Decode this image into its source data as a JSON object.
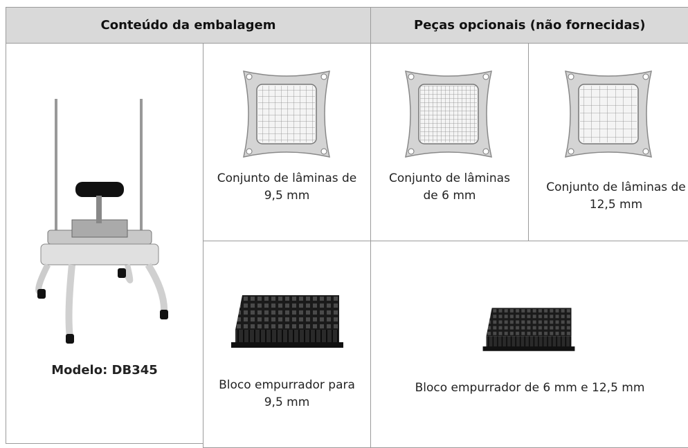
{
  "header": {
    "left": "Conteúdo da embalagem",
    "right": "Peças opcionais (não fornecidas)"
  },
  "machine": {
    "label": "Modelo: DB345"
  },
  "blades": [
    {
      "lines": [
        "Conjunto de lâminas de",
        "9,5 mm"
      ]
    },
    {
      "lines": [
        "Conjunto de lâminas",
        "de 6 mm"
      ]
    },
    {
      "lines": [
        "Conjunto de lâminas de",
        "12,5 mm"
      ]
    }
  ],
  "pushers": [
    {
      "lines": [
        "Bloco empurrador para",
        "9,5 mm"
      ]
    },
    {
      "lines": [
        "Bloco empurrador de 6 mm e 12,5 mm"
      ]
    }
  ]
}
